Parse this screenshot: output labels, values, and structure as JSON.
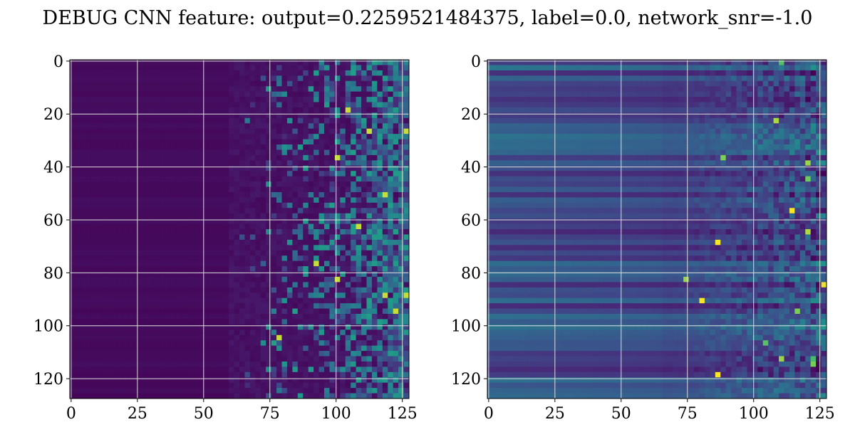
{
  "figure": {
    "title": "DEBUG CNN feature: output=0.2259521484375, label=0.0, network_snr=-1.0"
  },
  "chart_data": [
    {
      "type": "heatmap",
      "title": "",
      "xlabel": "",
      "ylabel": "",
      "xlim": [
        0,
        127
      ],
      "ylim": [
        127,
        0
      ],
      "xticks": [
        0,
        25,
        50,
        75,
        100,
        125
      ],
      "yticks": [
        0,
        20,
        40,
        60,
        80,
        100,
        120
      ],
      "grid": true,
      "colormap": "viridis",
      "rows": 128,
      "cols": 128,
      "description_of_values": "values near minimum for columns 0-65, increasing sparse bright pixels toward columns 75-127"
    },
    {
      "type": "heatmap",
      "title": "",
      "xlabel": "",
      "ylabel": "",
      "xlim": [
        0,
        127
      ],
      "ylim": [
        127,
        0
      ],
      "xticks": [
        0,
        25,
        50,
        75,
        100,
        125
      ],
      "yticks": [
        0,
        20,
        40,
        60,
        80,
        100,
        120
      ],
      "grid": true,
      "colormap": "viridis",
      "rows": 128,
      "cols": 128,
      "description_of_values": "horizontal banding across all columns, speckled brighter values for columns 75-127"
    }
  ],
  "colors": {
    "viridis_low": "#440154",
    "viridis_mid": "#21918c",
    "viridis_high": "#fde725",
    "grid": "#dddddd"
  }
}
